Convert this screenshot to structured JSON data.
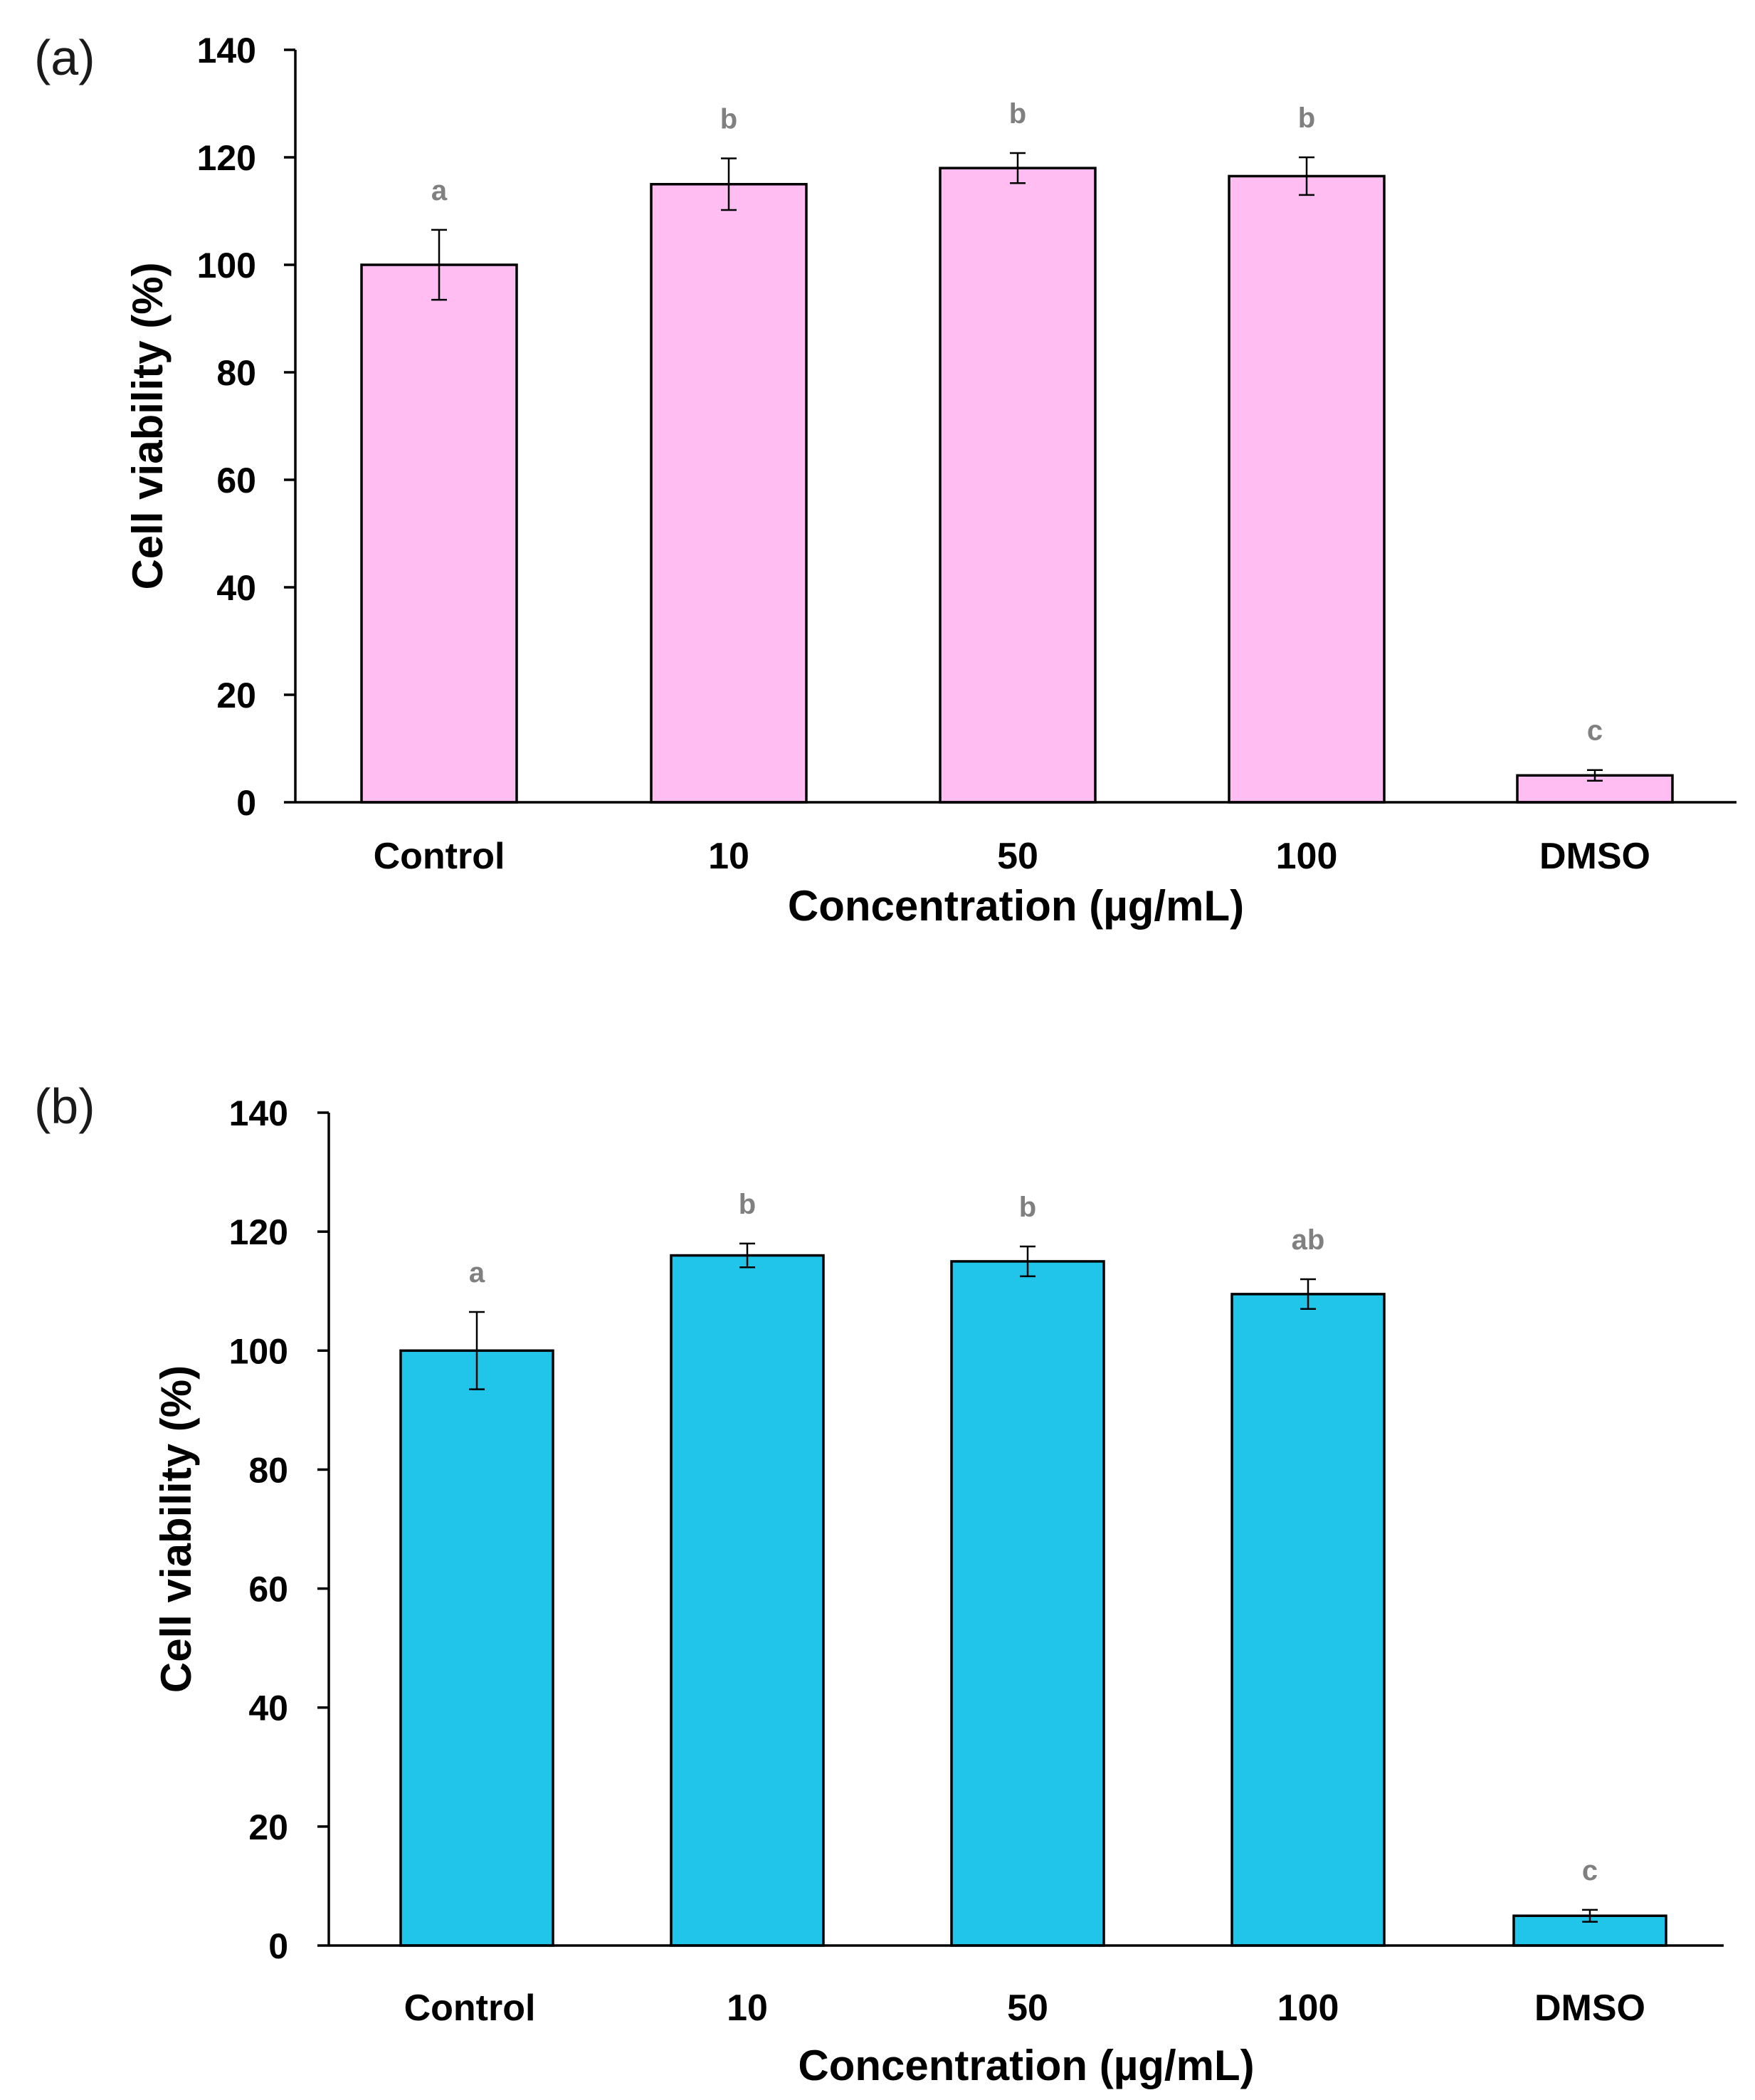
{
  "chart_data": [
    {
      "type": "bar",
      "panel_label": "(a)",
      "categories": [
        "Control",
        "10",
        "50",
        "100",
        "DMSO"
      ],
      "values": [
        100,
        115,
        118,
        116.5,
        5
      ],
      "errors": [
        6.5,
        4.8,
        2.8,
        3.5,
        1
      ],
      "significance": [
        "a",
        "b",
        "b",
        "b",
        "c"
      ],
      "xlabel": "Concentration (µg/mL)",
      "ylabel": "Cell viability (%)",
      "ylim": [
        0,
        140
      ],
      "yticks": [
        0,
        20,
        40,
        60,
        80,
        100,
        120,
        140
      ],
      "bar_color": "#FFBDF2",
      "grid": false
    },
    {
      "type": "bar",
      "panel_label": "(b)",
      "categories": [
        "Control",
        "10",
        "50",
        "100",
        "DMSO"
      ],
      "values": [
        100,
        116,
        115,
        109.5,
        5
      ],
      "errors": [
        6.5,
        2,
        2.5,
        2.5,
        1
      ],
      "significance": [
        "a",
        "b",
        "b",
        "ab",
        "c"
      ],
      "xlabel": "Concentration (µg/mL)",
      "ylabel": "Cell viability (%)",
      "ylim": [
        0,
        140
      ],
      "yticks": [
        0,
        20,
        40,
        60,
        80,
        100,
        120,
        140
      ],
      "bar_color": "#22C5EA",
      "grid": false
    }
  ]
}
